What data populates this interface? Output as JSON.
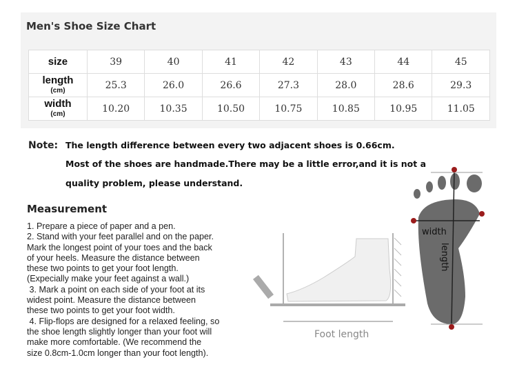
{
  "title": "Men's Shoe Size Chart",
  "table": {
    "headers": {
      "size": "size",
      "length": "length",
      "length_unit": "(cm)",
      "width": "width",
      "width_unit": "(cm)"
    },
    "sizes": [
      "39",
      "40",
      "41",
      "42",
      "43",
      "44",
      "45"
    ],
    "length": [
      "25.3",
      "26.0",
      "26.6",
      "27.3",
      "28.0",
      "28.6",
      "29.3"
    ],
    "width": [
      "10.20",
      "10.35",
      "10.50",
      "10.75",
      "10.85",
      "10.95",
      "11.05"
    ]
  },
  "note": {
    "label": "Note:",
    "lines": [
      "The length difference between every two adjacent shoes is 0.66cm.",
      "Most of the shoes are handmade.There may be a little error,and it is not a",
      "quality problem, please understand."
    ]
  },
  "measurement": {
    "heading": "Measurement",
    "lines": [
      "1. Prepare a piece of paper and a pen.",
      "2. Stand with your feet parallel and on the paper.",
      "Mark the longest point of your toes and the back",
      "of your heels. Measure the distance between",
      "these two points to get your foot length.",
      "(Expecially make your feet against a wall.)",
      " 3. Mark a point on each side of your foot at its",
      "widest point. Measure the distance between",
      "these two points to get your foot width.",
      " 4. Flip-flops are designed for a relaxed feeling, so",
      "the shoe length slightly longer than your foot will",
      "make more comfortable. (We recommend the",
      "size 0.8cm-1.0cm longer than your foot length)."
    ]
  },
  "diagram": {
    "foot_length": "Foot length",
    "width": "width",
    "length": "length",
    "marker_color": "#9b1c1c",
    "foot_color": "#6b6b6b"
  }
}
